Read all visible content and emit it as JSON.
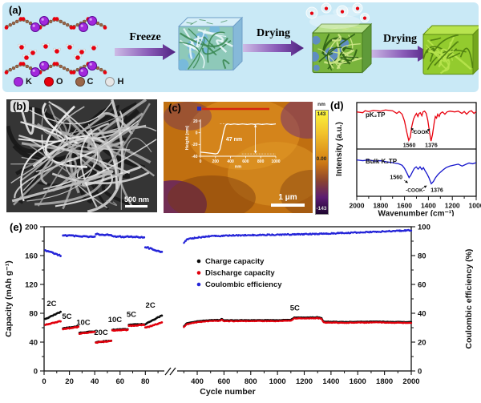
{
  "panels": {
    "a": {
      "label": "(a)",
      "steps": [
        "Freeze",
        "Drying",
        "Drying"
      ],
      "atom_legend": [
        {
          "symbol": "K",
          "color": "#a228dc"
        },
        {
          "symbol": "O",
          "color": "#e8000d"
        },
        {
          "symbol": "C",
          "color": "#9a6648"
        },
        {
          "symbol": "H",
          "color": "#e6e6e6"
        }
      ],
      "background": "#c9e9f6",
      "arrow_color": "#4f2180"
    },
    "b": {
      "label": "(b)",
      "scale_bar": "500 nm"
    },
    "c": {
      "label": "(c)",
      "scale_bar": "1 μm",
      "colorbar": {
        "unit": "nm",
        "max": "143",
        "mid": "0.00",
        "min": "-143"
      }
    },
    "d": {
      "label": "(d)"
    },
    "e": {
      "label": "(e)"
    }
  },
  "chart_data": [
    {
      "id": "afm-height-profile",
      "type": "line",
      "xlabel": "nm",
      "ylabel": "Height (nm)",
      "xlim": [
        0,
        1000
      ],
      "ylim": [
        -40,
        20
      ],
      "xticks": [
        0,
        200,
        400,
        600,
        800,
        1000
      ],
      "yticks": [
        20,
        0,
        -20,
        -40
      ],
      "annotation": "47 nm",
      "points": [
        [
          0,
          -33
        ],
        [
          80,
          -34
        ],
        [
          150,
          -35
        ],
        [
          200,
          -36
        ],
        [
          230,
          -35
        ],
        [
          260,
          -28
        ],
        [
          290,
          -10
        ],
        [
          315,
          5
        ],
        [
          335,
          13
        ],
        [
          360,
          15
        ],
        [
          400,
          14
        ],
        [
          450,
          15
        ],
        [
          500,
          14
        ],
        [
          560,
          15
        ],
        [
          620,
          14
        ],
        [
          680,
          15
        ],
        [
          720,
          14
        ],
        [
          760,
          15
        ],
        [
          820,
          14
        ],
        [
          880,
          15
        ],
        [
          940,
          14
        ],
        [
          1000,
          15
        ]
      ]
    },
    {
      "id": "ftir-spectra",
      "type": "line",
      "xlabel": "Wavenumber (cm⁻¹)",
      "ylabel": "Intensity (a.u.)",
      "xlim": [
        2000,
        1000
      ],
      "xticks": [
        2000,
        1800,
        1600,
        1400,
        1200,
        1000
      ],
      "series": [
        {
          "name": "pK₂TP",
          "color": "#e8000d",
          "annotation": "-COOK",
          "peak_labels": [
            "1560",
            "1376"
          ],
          "peaks": [
            1560,
            1376
          ],
          "points": [
            [
              2000,
              0.84
            ],
            [
              1950,
              0.82
            ],
            [
              1930,
              0.87
            ],
            [
              1900,
              0.85
            ],
            [
              1860,
              0.88
            ],
            [
              1800,
              0.86
            ],
            [
              1760,
              0.89
            ],
            [
              1700,
              0.87
            ],
            [
              1665,
              0.8
            ],
            [
              1645,
              0.85
            ],
            [
              1620,
              0.78
            ],
            [
              1600,
              0.6
            ],
            [
              1580,
              0.3
            ],
            [
              1565,
              0.1
            ],
            [
              1552,
              0.18
            ],
            [
              1540,
              0.45
            ],
            [
              1525,
              0.65
            ],
            [
              1512,
              0.74
            ],
            [
              1500,
              0.8
            ],
            [
              1488,
              0.72
            ],
            [
              1478,
              0.8
            ],
            [
              1468,
              0.82
            ],
            [
              1455,
              0.74
            ],
            [
              1445,
              0.84
            ],
            [
              1432,
              0.86
            ],
            [
              1418,
              0.8
            ],
            [
              1405,
              0.62
            ],
            [
              1390,
              0.3
            ],
            [
              1378,
              0.08
            ],
            [
              1366,
              0.25
            ],
            [
              1352,
              0.55
            ],
            [
              1342,
              0.72
            ],
            [
              1332,
              0.68
            ],
            [
              1322,
              0.78
            ],
            [
              1310,
              0.72
            ],
            [
              1300,
              0.8
            ],
            [
              1282,
              0.84
            ],
            [
              1262,
              0.78
            ],
            [
              1244,
              0.84
            ],
            [
              1220,
              0.86
            ],
            [
              1180,
              0.84
            ],
            [
              1150,
              0.86
            ],
            [
              1120,
              0.8
            ],
            [
              1100,
              0.85
            ],
            [
              1080,
              0.78
            ],
            [
              1058,
              0.85
            ],
            [
              1040,
              0.87
            ],
            [
              1018,
              0.8
            ],
            [
              1000,
              0.85
            ]
          ]
        },
        {
          "name": "Bulk K₂TP",
          "color": "#1515cc",
          "annotation": "-COOK-",
          "peak_labels": [
            "1560",
            "1376"
          ],
          "peaks": [
            1560,
            1376
          ],
          "points": [
            [
              2000,
              0.8
            ],
            [
              1950,
              0.78
            ],
            [
              1900,
              0.8
            ],
            [
              1850,
              0.77
            ],
            [
              1800,
              0.78
            ],
            [
              1750,
              0.75
            ],
            [
              1700,
              0.73
            ],
            [
              1650,
              0.7
            ],
            [
              1620,
              0.66
            ],
            [
              1600,
              0.58
            ],
            [
              1580,
              0.46
            ],
            [
              1562,
              0.34
            ],
            [
              1548,
              0.4
            ],
            [
              1532,
              0.5
            ],
            [
              1518,
              0.58
            ],
            [
              1502,
              0.62
            ],
            [
              1486,
              0.56
            ],
            [
              1470,
              0.62
            ],
            [
              1455,
              0.55
            ],
            [
              1442,
              0.6
            ],
            [
              1428,
              0.52
            ],
            [
              1412,
              0.44
            ],
            [
              1396,
              0.34
            ],
            [
              1376,
              0.18
            ],
            [
              1358,
              0.24
            ],
            [
              1340,
              0.34
            ],
            [
              1320,
              0.42
            ],
            [
              1300,
              0.48
            ],
            [
              1278,
              0.54
            ],
            [
              1252,
              0.6
            ],
            [
              1220,
              0.64
            ],
            [
              1180,
              0.67
            ],
            [
              1150,
              0.69
            ],
            [
              1118,
              0.64
            ],
            [
              1090,
              0.68
            ],
            [
              1060,
              0.72
            ],
            [
              1030,
              0.7
            ],
            [
              1000,
              0.73
            ]
          ]
        }
      ]
    },
    {
      "id": "cycling-performance",
      "type": "scatter",
      "xlabel": "Cycle number",
      "ylabel_left": "Capacity (mAh g⁻¹)",
      "ylabel_right": "Coulombic efficiency (%)",
      "ylim_left": [
        0,
        200
      ],
      "yticks_left": [
        0,
        40,
        80,
        120,
        160,
        200
      ],
      "ylim_right": [
        0,
        100
      ],
      "yticks_right": [
        0,
        20,
        40,
        60,
        80,
        100
      ],
      "axis_break": true,
      "xticks_before_break": [
        0,
        20,
        40,
        60,
        80
      ],
      "xticks_after_break": [
        400,
        600,
        800,
        1000,
        1200,
        1400,
        1600,
        1800,
        2000
      ],
      "legend": [
        {
          "name": "Charge capacity",
          "color": "#0a0a0a"
        },
        {
          "name": "Discharge capacity",
          "color": "#e1000c"
        },
        {
          "name": "Coulombic efficiency",
          "color": "#2525d8"
        }
      ],
      "rate_segments": [
        {
          "label": "2C",
          "cycles": [
            1,
            13
          ],
          "charge": [
            72,
            82
          ],
          "discharge": [
            64,
            69
          ],
          "efficiency": [
            83.5,
            80
          ],
          "label_pos": [
            6,
            90
          ]
        },
        {
          "label": "5C",
          "cycles": [
            15,
            27
          ],
          "charge": [
            59,
            62
          ],
          "discharge": [
            58,
            61
          ],
          "efficiency": [
            94,
            93.5
          ],
          "label_pos": [
            18,
            72
          ]
        },
        {
          "label": "10C",
          "cycles": [
            28,
            40
          ],
          "charge": [
            53,
            55
          ],
          "discharge": [
            52,
            54
          ],
          "efficiency": [
            93.5,
            93
          ],
          "label_pos": [
            31,
            64
          ]
        },
        {
          "label": "20C",
          "cycles": [
            41,
            53
          ],
          "charge": [
            40,
            42
          ],
          "discharge": [
            39.5,
            41.5
          ],
          "efficiency": [
            95,
            94
          ],
          "label_pos": [
            45,
            50
          ]
        },
        {
          "label": "10C",
          "cycles": [
            54,
            66
          ],
          "charge": [
            57,
            58
          ],
          "discharge": [
            56,
            57
          ],
          "efficiency": [
            93.5,
            93
          ],
          "label_pos": [
            56,
            68
          ]
        },
        {
          "label": "5C",
          "cycles": [
            67,
            79
          ],
          "charge": [
            64,
            65
          ],
          "discharge": [
            62.5,
            64
          ],
          "efficiency": [
            93,
            92.5
          ],
          "label_pos": [
            69,
            75
          ]
        },
        {
          "label": "2C",
          "cycles": [
            80,
            93
          ],
          "charge": [
            65,
            77
          ],
          "discharge": [
            60,
            67
          ],
          "efficiency": [
            86,
            82.5
          ],
          "label_pos": [
            84,
            88
          ]
        }
      ],
      "long_segment": {
        "label": "5C",
        "label_pos": [
          1130,
          84
        ],
        "charge": [
          [
            300,
            62
          ],
          [
            320,
            66
          ],
          [
            400,
            69
          ],
          [
            500,
            70.5
          ],
          [
            575,
            71
          ],
          [
            583,
            72.8
          ],
          [
            595,
            70.5
          ],
          [
            800,
            70.5
          ],
          [
            1000,
            70.5
          ],
          [
            1100,
            71
          ],
          [
            1125,
            74
          ],
          [
            1300,
            74.5
          ],
          [
            1330,
            73.5
          ],
          [
            1345,
            68.5
          ],
          [
            1500,
            68
          ],
          [
            1700,
            68.5
          ],
          [
            2000,
            68
          ]
        ],
        "discharge_offset": -1.3,
        "efficiency": [
          [
            300,
            89
          ],
          [
            330,
            91.5
          ],
          [
            400,
            92.5
          ],
          [
            500,
            93.5
          ],
          [
            700,
            94
          ],
          [
            1000,
            94.5
          ],
          [
            1300,
            95
          ],
          [
            1600,
            96
          ],
          [
            2000,
            97.5
          ]
        ]
      }
    }
  ]
}
